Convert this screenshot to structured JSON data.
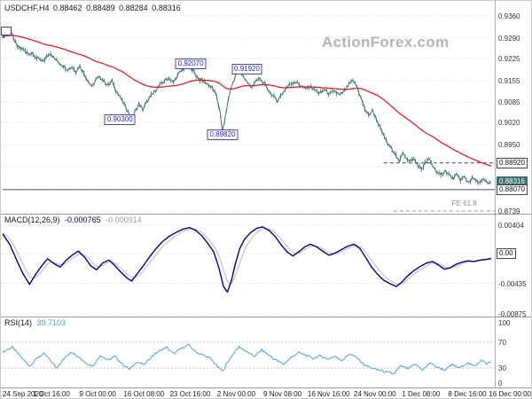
{
  "watermark": "ActionForex.com",
  "x_axis": {
    "ticks": [
      "24 Sep 2020",
      "1 Oct 16:00",
      "9 Oct 00:00",
      "16 Oct 08:00",
      "23 Oct 16:00",
      "2 Nov 00:00",
      "9 Nov 08:00",
      "16 Nov 16:00",
      "24 Nov 00:00",
      "1 Dec 08:00",
      "8 Dec 16:00",
      "16 Dec 00:00"
    ]
  },
  "chart_data": [
    {
      "type": "candlestick",
      "title": "USDCHF,H4",
      "ohlc": {
        "open": "0.88462",
        "high": "0.88489",
        "low": "0.88284",
        "close": "0.88316"
      },
      "ylim": [
        0.8739,
        0.936
      ],
      "y_ticks": [
        "0.9360",
        "0.9290",
        "0.9225",
        "0.9155",
        "0.9085",
        "0.9020",
        "0.8950",
        "0.8739"
      ],
      "grid_values": [
        0.936,
        0.929,
        0.9225,
        0.9155,
        0.9085,
        0.902,
        0.895,
        0.888,
        0.881,
        0.8739
      ],
      "axis_labels": [
        {
          "text": "0.88920",
          "value": 0.8892,
          "style": "outline"
        },
        {
          "text": "0.88316",
          "value": 0.88316,
          "style": "filled"
        },
        {
          "text": "0.88070",
          "value": 0.8807,
          "style": "outline"
        }
      ],
      "levels": [
        {
          "value": 0.8892,
          "style": "dashed",
          "color": "#444444",
          "x_start": 0.78
        },
        {
          "value": 0.8807,
          "style": "solid",
          "color": "#555555",
          "x_start": 0
        },
        {
          "value": 0.8739,
          "style": "dashed",
          "color": "#999999",
          "x_start": 0.8
        }
      ],
      "annotations": [
        {
          "text": "0.92070",
          "price": 0.9207,
          "xf": 0.385,
          "style": "box"
        },
        {
          "text": "0.91920",
          "price": 0.9192,
          "xf": 0.5,
          "style": "box"
        },
        {
          "text": "0.90300",
          "price": 0.903,
          "xf": 0.24,
          "style": "box"
        },
        {
          "text": "0.89820",
          "price": 0.8982,
          "xf": 0.45,
          "style": "box"
        },
        {
          "text": "FE 61.8",
          "price": 0.8762,
          "xf": 0.945,
          "style": "plain"
        }
      ],
      "colors": {
        "price": "#3b7373",
        "ma": "#dd2222"
      },
      "series": {
        "close": [
          [
            0,
            0.9292
          ],
          [
            0.008,
            0.9305
          ],
          [
            0.015,
            0.9318
          ],
          [
            0.022,
            0.9288
          ],
          [
            0.03,
            0.9262
          ],
          [
            0.04,
            0.9255
          ],
          [
            0.05,
            0.9245
          ],
          [
            0.06,
            0.9238
          ],
          [
            0.07,
            0.9226
          ],
          [
            0.082,
            0.9214
          ],
          [
            0.09,
            0.923
          ],
          [
            0.098,
            0.9243
          ],
          [
            0.106,
            0.9224
          ],
          [
            0.115,
            0.9212
          ],
          [
            0.124,
            0.9202
          ],
          [
            0.133,
            0.919
          ],
          [
            0.142,
            0.9198
          ],
          [
            0.15,
            0.9184
          ],
          [
            0.158,
            0.9201
          ],
          [
            0.166,
            0.9178
          ],
          [
            0.175,
            0.9153
          ],
          [
            0.183,
            0.9134
          ],
          [
            0.191,
            0.9158
          ],
          [
            0.2,
            0.9166
          ],
          [
            0.208,
            0.915
          ],
          [
            0.216,
            0.9139
          ],
          [
            0.224,
            0.9152
          ],
          [
            0.232,
            0.9124
          ],
          [
            0.24,
            0.9101
          ],
          [
            0.249,
            0.9078
          ],
          [
            0.257,
            0.9055
          ],
          [
            0.264,
            0.9032
          ],
          [
            0.271,
            0.9056
          ],
          [
            0.279,
            0.9079
          ],
          [
            0.287,
            0.9062
          ],
          [
            0.295,
            0.9085
          ],
          [
            0.304,
            0.9105
          ],
          [
            0.313,
            0.9124
          ],
          [
            0.322,
            0.914
          ],
          [
            0.331,
            0.9153
          ],
          [
            0.34,
            0.9163
          ],
          [
            0.349,
            0.9147
          ],
          [
            0.358,
            0.917
          ],
          [
            0.367,
            0.9188
          ],
          [
            0.375,
            0.92
          ],
          [
            0.381,
            0.9206
          ],
          [
            0.388,
            0.919
          ],
          [
            0.396,
            0.917
          ],
          [
            0.404,
            0.9158
          ],
          [
            0.413,
            0.915
          ],
          [
            0.422,
            0.9141
          ],
          [
            0.43,
            0.9128
          ],
          [
            0.438,
            0.9105
          ],
          [
            0.444,
            0.9062
          ],
          [
            0.45,
            0.899
          ],
          [
            0.456,
            0.9042
          ],
          [
            0.462,
            0.9096
          ],
          [
            0.469,
            0.9138
          ],
          [
            0.476,
            0.9168
          ],
          [
            0.483,
            0.919
          ],
          [
            0.491,
            0.9172
          ],
          [
            0.499,
            0.9153
          ],
          [
            0.508,
            0.9133
          ],
          [
            0.517,
            0.9149
          ],
          [
            0.526,
            0.9161
          ],
          [
            0.535,
            0.9144
          ],
          [
            0.544,
            0.9124
          ],
          [
            0.553,
            0.9106
          ],
          [
            0.562,
            0.909
          ],
          [
            0.571,
            0.911
          ],
          [
            0.58,
            0.913
          ],
          [
            0.589,
            0.9144
          ],
          [
            0.599,
            0.9151
          ],
          [
            0.609,
            0.9139
          ],
          [
            0.619,
            0.9128
          ],
          [
            0.629,
            0.9136
          ],
          [
            0.639,
            0.9124
          ],
          [
            0.649,
            0.9113
          ],
          [
            0.659,
            0.9126
          ],
          [
            0.669,
            0.911
          ],
          [
            0.679,
            0.9121
          ],
          [
            0.69,
            0.9107
          ],
          [
            0.7,
            0.9121
          ],
          [
            0.709,
            0.9142
          ],
          [
            0.717,
            0.9153
          ],
          [
            0.725,
            0.9136
          ],
          [
            0.733,
            0.91
          ],
          [
            0.741,
            0.9065
          ],
          [
            0.749,
            0.9043
          ],
          [
            0.757,
            0.9059
          ],
          [
            0.765,
            0.9033
          ],
          [
            0.773,
            0.9002
          ],
          [
            0.781,
            0.8976
          ],
          [
            0.789,
            0.895
          ],
          [
            0.797,
            0.8938
          ],
          [
            0.805,
            0.8916
          ],
          [
            0.812,
            0.8893
          ],
          [
            0.819,
            0.8928
          ],
          [
            0.826,
            0.891
          ],
          [
            0.833,
            0.8896
          ],
          [
            0.841,
            0.8906
          ],
          [
            0.849,
            0.8886
          ],
          [
            0.857,
            0.8872
          ],
          [
            0.865,
            0.8891
          ],
          [
            0.873,
            0.8904
          ],
          [
            0.881,
            0.8881
          ],
          [
            0.889,
            0.8863
          ],
          [
            0.897,
            0.8851
          ],
          [
            0.905,
            0.8869
          ],
          [
            0.913,
            0.8856
          ],
          [
            0.921,
            0.8842
          ],
          [
            0.929,
            0.8853
          ],
          [
            0.937,
            0.8839
          ],
          [
            0.945,
            0.8847
          ],
          [
            0.953,
            0.8831
          ],
          [
            0.961,
            0.8843
          ],
          [
            0.969,
            0.8836
          ],
          [
            0.977,
            0.8829
          ],
          [
            0.985,
            0.8838
          ],
          [
            0.993,
            0.8827
          ],
          [
            1,
            0.8832
          ]
        ]
      }
    },
    {
      "type": "line",
      "name": "MACD",
      "label": "MACD(12,26,9)",
      "value_main": "-0.000765",
      "value_signal": "-0.000914",
      "y_ticks": [
        "0.00404",
        "-0.00435",
        "-0.00875"
      ],
      "axis_labels": [
        {
          "text": "0.00",
          "value": 0,
          "style": "outline"
        }
      ],
      "grid_values": [
        0.00404,
        0,
        -0.00435,
        -0.00875
      ],
      "colors": {
        "macd": "#00008b",
        "signal": "#c8c8c8"
      },
      "points": [
        [
          0,
          0.0028
        ],
        [
          0.015,
          0.0012
        ],
        [
          0.03,
          -0.0012
        ],
        [
          0.042,
          -0.003
        ],
        [
          0.055,
          -0.0045
        ],
        [
          0.068,
          -0.003
        ],
        [
          0.08,
          -0.0018
        ],
        [
          0.092,
          -0.0008
        ],
        [
          0.105,
          -0.0015
        ],
        [
          0.118,
          -0.002
        ],
        [
          0.13,
          -0.001
        ],
        [
          0.142,
          -0.0003
        ],
        [
          0.155,
          0.0003
        ],
        [
          0.168,
          -0.0006
        ],
        [
          0.18,
          -0.0018
        ],
        [
          0.192,
          -0.0024
        ],
        [
          0.205,
          -0.0014
        ],
        [
          0.218,
          -0.001
        ],
        [
          0.23,
          -0.0018
        ],
        [
          0.243,
          -0.0028
        ],
        [
          0.255,
          -0.0036
        ],
        [
          0.264,
          -0.004
        ],
        [
          0.275,
          -0.003
        ],
        [
          0.288,
          -0.0018
        ],
        [
          0.3,
          -0.0006
        ],
        [
          0.313,
          0.0006
        ],
        [
          0.326,
          0.0016
        ],
        [
          0.34,
          0.0024
        ],
        [
          0.355,
          0.003
        ],
        [
          0.37,
          0.0035
        ],
        [
          0.383,
          0.0037
        ],
        [
          0.395,
          0.0033
        ],
        [
          0.408,
          0.0025
        ],
        [
          0.42,
          0.0014
        ],
        [
          0.432,
          0.0002
        ],
        [
          0.443,
          -0.0022
        ],
        [
          0.452,
          -0.0048
        ],
        [
          0.46,
          -0.0056
        ],
        [
          0.468,
          -0.004
        ],
        [
          0.476,
          -0.0016
        ],
        [
          0.485,
          0.0006
        ],
        [
          0.495,
          0.002
        ],
        [
          0.508,
          0.003
        ],
        [
          0.52,
          0.0036
        ],
        [
          0.532,
          0.0038
        ],
        [
          0.545,
          0.0033
        ],
        [
          0.558,
          0.0024
        ],
        [
          0.57,
          0.0012
        ],
        [
          0.582,
          0.0002
        ],
        [
          0.594,
          -0.0004
        ],
        [
          0.606,
          0.0002
        ],
        [
          0.618,
          0.0009
        ],
        [
          0.63,
          0.0013
        ],
        [
          0.643,
          0.0009
        ],
        [
          0.655,
          0.0003
        ],
        [
          0.668,
          -0.0003
        ],
        [
          0.68,
          0
        ],
        [
          0.693,
          0.0005
        ],
        [
          0.706,
          0.001
        ],
        [
          0.719,
          0.0013
        ],
        [
          0.731,
          0.0007
        ],
        [
          0.743,
          -0.0006
        ],
        [
          0.755,
          -0.002
        ],
        [
          0.768,
          -0.0031
        ],
        [
          0.78,
          -0.0039
        ],
        [
          0.793,
          -0.0044
        ],
        [
          0.806,
          -0.0048
        ],
        [
          0.818,
          -0.0041
        ],
        [
          0.83,
          -0.0032
        ],
        [
          0.842,
          -0.0025
        ],
        [
          0.855,
          -0.0019
        ],
        [
          0.868,
          -0.0014
        ],
        [
          0.88,
          -0.0012
        ],
        [
          0.892,
          -0.0017
        ],
        [
          0.904,
          -0.0023
        ],
        [
          0.916,
          -0.0021
        ],
        [
          0.928,
          -0.0016
        ],
        [
          0.94,
          -0.0013
        ],
        [
          0.952,
          -0.0011
        ],
        [
          0.964,
          -0.0012
        ],
        [
          0.976,
          -0.001
        ],
        [
          0.988,
          -0.0009
        ],
        [
          1,
          -0.000765
        ]
      ]
    },
    {
      "type": "line",
      "name": "RSI",
      "label": "RSI(14)",
      "value": "39.7103",
      "y_ticks": [
        "100",
        "70",
        "30",
        "0"
      ],
      "grid_values": [
        70,
        30
      ],
      "colors": {
        "rsi": "#5fa8d8"
      },
      "points": [
        [
          0,
          55
        ],
        [
          0.02,
          62
        ],
        [
          0.04,
          45
        ],
        [
          0.055,
          33
        ],
        [
          0.07,
          45
        ],
        [
          0.085,
          52
        ],
        [
          0.1,
          40
        ],
        [
          0.11,
          30
        ],
        [
          0.125,
          44
        ],
        [
          0.14,
          55
        ],
        [
          0.155,
          48
        ],
        [
          0.17,
          38
        ],
        [
          0.185,
          33
        ],
        [
          0.2,
          50
        ],
        [
          0.215,
          42
        ],
        [
          0.23,
          48
        ],
        [
          0.245,
          36
        ],
        [
          0.26,
          28
        ],
        [
          0.275,
          40
        ],
        [
          0.29,
          35
        ],
        [
          0.305,
          48
        ],
        [
          0.32,
          56
        ],
        [
          0.335,
          62
        ],
        [
          0.35,
          52
        ],
        [
          0.365,
          60
        ],
        [
          0.38,
          66
        ],
        [
          0.395,
          55
        ],
        [
          0.41,
          50
        ],
        [
          0.425,
          45
        ],
        [
          0.44,
          32
        ],
        [
          0.45,
          25
        ],
        [
          0.46,
          38
        ],
        [
          0.472,
          52
        ],
        [
          0.484,
          63
        ],
        [
          0.5,
          55
        ],
        [
          0.515,
          48
        ],
        [
          0.53,
          58
        ],
        [
          0.545,
          50
        ],
        [
          0.56,
          42
        ],
        [
          0.575,
          36
        ],
        [
          0.59,
          46
        ],
        [
          0.605,
          54
        ],
        [
          0.62,
          50
        ],
        [
          0.635,
          45
        ],
        [
          0.65,
          49
        ],
        [
          0.665,
          44
        ],
        [
          0.68,
          48
        ],
        [
          0.695,
          42
        ],
        [
          0.71,
          52
        ],
        [
          0.725,
          46
        ],
        [
          0.74,
          35
        ],
        [
          0.755,
          30
        ],
        [
          0.77,
          27
        ],
        [
          0.785,
          24
        ],
        [
          0.8,
          21
        ],
        [
          0.815,
          33
        ],
        [
          0.83,
          29
        ],
        [
          0.845,
          36
        ],
        [
          0.86,
          27
        ],
        [
          0.875,
          38
        ],
        [
          0.89,
          31
        ],
        [
          0.905,
          27
        ],
        [
          0.92,
          35
        ],
        [
          0.935,
          30
        ],
        [
          0.95,
          38
        ],
        [
          0.965,
          33
        ],
        [
          0.98,
          42
        ],
        [
          0.99,
          37
        ],
        [
          1,
          39.7
        ]
      ]
    }
  ]
}
